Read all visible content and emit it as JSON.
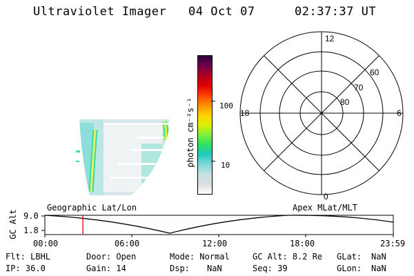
{
  "header": {
    "instrument": "Ultraviolet Imager",
    "date": "04 Oct 07",
    "time": "02:37:37 UT"
  },
  "colorbar": {
    "unit_label": "photon cm⁻²s⁻¹",
    "tick_labels": [
      "100",
      "10"
    ],
    "colors": [
      "#ffffff",
      "#dcdcdc",
      "#c4e0e4",
      "#7ed8d8",
      "#20c8c0",
      "#30e060",
      "#80f040",
      "#e0f000",
      "#ffd000",
      "#ff9000",
      "#ff4000",
      "#e00000",
      "#b00020",
      "#70004a",
      "#300040"
    ]
  },
  "polar": {
    "mlt_labels": {
      "top": "12",
      "left": "18",
      "right": "6",
      "bottom": "0"
    },
    "lat_labels": [
      "60",
      "70",
      "80"
    ]
  },
  "image_panel": {
    "colors": [
      "#30e0c0",
      "#20c8b0",
      "#e8f060",
      "#f0f040",
      "#ffffff",
      "#d8d8d8"
    ]
  },
  "altitude_plot": {
    "ylabel": "GC Alt",
    "yticks": [
      "9.0",
      "1.8"
    ],
    "left_title": "Geographic Lat/Lon",
    "right_title": "Apex MLat/MLT",
    "xticks": [
      "00:00",
      "06:00",
      "12:00",
      "18:00",
      "23:59"
    ],
    "marker_time": "02:37",
    "marker_color": "#e00000"
  },
  "footer": {
    "row1": [
      {
        "label": "Flt:",
        "value": "LBHL"
      },
      {
        "label": "Door:",
        "value": "Open"
      },
      {
        "label": "Mode:",
        "value": "Normal"
      },
      {
        "label": "GC Alt:",
        "value": "8.2 Re"
      },
      {
        "label": "GLat:",
        "value": "NaN"
      }
    ],
    "row2": [
      {
        "label": "IP:",
        "value": "36.0"
      },
      {
        "label": "Gain:",
        "value": "14"
      },
      {
        "label": "Dsp:",
        "value": "NaN"
      },
      {
        "label": "Seq:",
        "value": "39"
      },
      {
        "label": "GLon:",
        "value": "NaN"
      }
    ]
  }
}
